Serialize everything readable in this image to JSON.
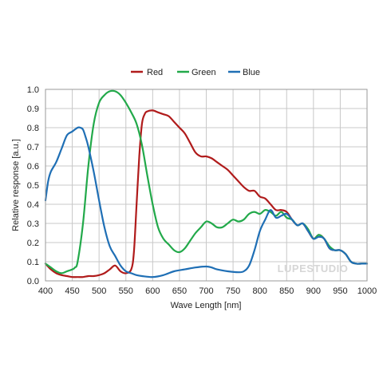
{
  "chart_data": {
    "type": "line",
    "title": "",
    "xlabel": "Wave Length [nm]",
    "ylabel": "Relative response [a.u.]",
    "xlim": [
      400,
      1000
    ],
    "ylim": [
      0,
      1.0
    ],
    "xticks": [
      "400",
      "450",
      "500",
      "550",
      "600",
      "650",
      "700",
      "750",
      "800",
      "850",
      "900",
      "950",
      "1000"
    ],
    "yticks": [
      "0.0",
      "0.1",
      "0.2",
      "0.3",
      "0.4",
      "0.5",
      "0.6",
      "0.7",
      "0.8",
      "0.9",
      "1.0"
    ],
    "grid": true,
    "legend_position": "top-center",
    "watermark": "LUPESTUDIO",
    "series": [
      {
        "name": "Red",
        "color": "#b01b1b",
        "x": [
          400,
          410,
          420,
          430,
          440,
          450,
          460,
          470,
          480,
          490,
          500,
          510,
          520,
          530,
          540,
          550,
          560,
          565,
          570,
          575,
          580,
          585,
          590,
          600,
          610,
          620,
          630,
          640,
          650,
          660,
          670,
          680,
          690,
          700,
          710,
          720,
          730,
          740,
          750,
          760,
          770,
          780,
          790,
          800,
          810,
          820,
          830,
          840,
          850,
          860,
          870,
          880,
          890,
          900,
          910,
          920,
          930,
          940,
          950,
          960,
          970,
          980,
          990,
          1000
        ],
        "y": [
          0.09,
          0.06,
          0.04,
          0.03,
          0.025,
          0.02,
          0.02,
          0.02,
          0.025,
          0.025,
          0.03,
          0.04,
          0.06,
          0.08,
          0.05,
          0.04,
          0.06,
          0.15,
          0.4,
          0.65,
          0.82,
          0.87,
          0.885,
          0.89,
          0.88,
          0.87,
          0.86,
          0.83,
          0.8,
          0.77,
          0.72,
          0.67,
          0.65,
          0.65,
          0.64,
          0.62,
          0.6,
          0.58,
          0.55,
          0.52,
          0.49,
          0.47,
          0.47,
          0.44,
          0.43,
          0.4,
          0.37,
          0.37,
          0.36,
          0.32,
          0.29,
          0.3,
          0.26,
          0.22,
          0.24,
          0.22,
          0.17,
          0.16,
          0.16,
          0.14,
          0.1,
          0.09,
          0.09,
          0.09
        ]
      },
      {
        "name": "Green",
        "color": "#22a94a",
        "x": [
          400,
          410,
          420,
          430,
          440,
          450,
          455,
          460,
          470,
          480,
          490,
          500,
          510,
          520,
          530,
          540,
          550,
          560,
          570,
          580,
          590,
          600,
          610,
          620,
          630,
          640,
          650,
          660,
          670,
          680,
          690,
          700,
          710,
          720,
          730,
          740,
          750,
          760,
          770,
          780,
          790,
          800,
          810,
          820,
          830,
          840,
          850,
          860,
          870,
          880,
          890,
          900,
          910,
          920,
          930,
          940,
          950,
          960,
          970,
          980,
          990,
          1000
        ],
        "y": [
          0.09,
          0.07,
          0.05,
          0.04,
          0.05,
          0.06,
          0.07,
          0.1,
          0.3,
          0.6,
          0.82,
          0.93,
          0.97,
          0.99,
          0.99,
          0.97,
          0.93,
          0.88,
          0.82,
          0.71,
          0.55,
          0.4,
          0.28,
          0.22,
          0.19,
          0.16,
          0.15,
          0.17,
          0.21,
          0.25,
          0.28,
          0.31,
          0.3,
          0.28,
          0.28,
          0.3,
          0.32,
          0.31,
          0.32,
          0.35,
          0.36,
          0.35,
          0.37,
          0.36,
          0.34,
          0.36,
          0.33,
          0.32,
          0.29,
          0.3,
          0.27,
          0.22,
          0.24,
          0.22,
          0.18,
          0.16,
          0.16,
          0.14,
          0.1,
          0.09,
          0.09,
          0.09
        ]
      },
      {
        "name": "Blue",
        "color": "#1f6fb5",
        "x": [
          400,
          405,
          410,
          420,
          430,
          440,
          450,
          460,
          465,
          470,
          475,
          480,
          490,
          500,
          510,
          520,
          530,
          540,
          550,
          560,
          570,
          580,
          600,
          620,
          640,
          660,
          680,
          700,
          710,
          720,
          740,
          760,
          770,
          780,
          790,
          800,
          810,
          820,
          830,
          840,
          850,
          860,
          870,
          880,
          890,
          900,
          910,
          920,
          930,
          940,
          950,
          960,
          970,
          980,
          990,
          1000
        ],
        "y": [
          0.42,
          0.52,
          0.57,
          0.62,
          0.69,
          0.76,
          0.78,
          0.8,
          0.8,
          0.79,
          0.75,
          0.7,
          0.57,
          0.42,
          0.28,
          0.18,
          0.13,
          0.08,
          0.05,
          0.04,
          0.03,
          0.025,
          0.02,
          0.03,
          0.05,
          0.06,
          0.07,
          0.075,
          0.07,
          0.06,
          0.05,
          0.045,
          0.05,
          0.08,
          0.16,
          0.26,
          0.32,
          0.37,
          0.33,
          0.34,
          0.35,
          0.32,
          0.29,
          0.3,
          0.26,
          0.22,
          0.23,
          0.22,
          0.17,
          0.16,
          0.16,
          0.14,
          0.1,
          0.09,
          0.09,
          0.09
        ]
      }
    ]
  }
}
